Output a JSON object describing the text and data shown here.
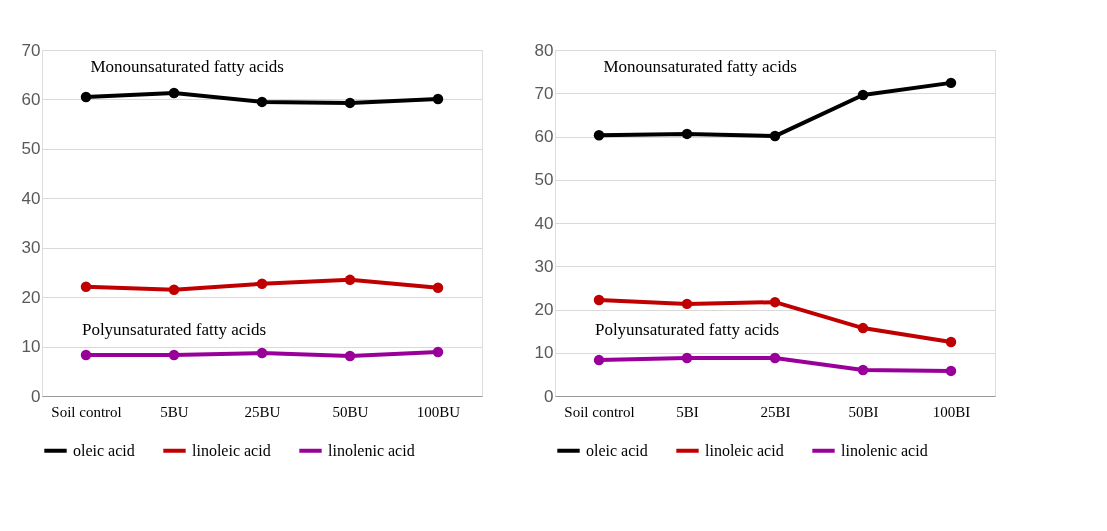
{
  "chart_data": [
    {
      "type": "line",
      "categories": [
        "Soil control",
        "5BU",
        "25BU",
        "50BU",
        "100BU"
      ],
      "series": [
        {
          "name": "oleic acid",
          "color": "#000000",
          "values": [
            60.5,
            61.3,
            59.5,
            59.3,
            60.1
          ]
        },
        {
          "name": "linoleic acid",
          "color": "#c00000",
          "values": [
            22.1,
            21.5,
            22.7,
            23.5,
            21.9
          ]
        },
        {
          "name": "linolenic acid",
          "color": "#990099",
          "values": [
            8.3,
            8.3,
            8.7,
            8.1,
            8.9
          ]
        }
      ],
      "ylim": [
        0,
        70
      ],
      "yticks": [
        0,
        10,
        20,
        30,
        40,
        50,
        60,
        70
      ],
      "grid": "y",
      "legend": "bottom",
      "marker": "circle",
      "line_style": "solid",
      "annotations": [
        "Monounsaturated fatty acids",
        "Polyunsaturated fatty acids"
      ]
    },
    {
      "type": "line",
      "categories": [
        "Soil control",
        "5BI",
        "25BI",
        "50BI",
        "100BI"
      ],
      "series": [
        {
          "name": "oleic acid",
          "color": "#000000",
          "values": [
            60.3,
            60.6,
            60.1,
            69.6,
            72.4
          ]
        },
        {
          "name": "linoleic acid",
          "color": "#c00000",
          "values": [
            22.2,
            21.3,
            21.7,
            15.7,
            12.5
          ]
        },
        {
          "name": "linolenic acid",
          "color": "#990099",
          "values": [
            8.3,
            8.8,
            8.8,
            6.0,
            5.8
          ]
        }
      ],
      "ylim": [
        0,
        80
      ],
      "yticks": [
        0,
        10,
        20,
        30,
        40,
        50,
        60,
        70,
        80
      ],
      "grid": "y",
      "legend": "bottom",
      "marker": "circle",
      "line_style": "solid",
      "annotations": [
        "Monounsaturated fatty acids",
        "Polyunsaturated fatty acids"
      ]
    }
  ]
}
